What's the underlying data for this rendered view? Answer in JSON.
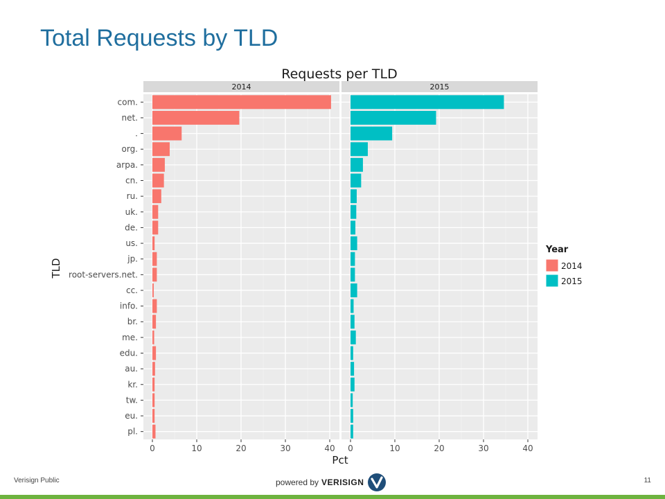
{
  "slide": {
    "title": "Total Requests by TLD",
    "footer_left": "Verisign Public",
    "footer_powered": "powered by",
    "footer_brand": "VERISIGN",
    "page_number": "11"
  },
  "colors": {
    "title": "#1f6e9e",
    "series_2014": "#f8766d",
    "series_2015": "#00bfc4",
    "panel_bg": "#ebebeb",
    "strip_bg": "#d9d9d9",
    "footer_bar": "#6db33f",
    "logo_circle": "#1f4e79"
  },
  "chart_data": {
    "type": "bar",
    "orientation": "horizontal",
    "facet": "Year",
    "title": "Requests per TLD",
    "xlabel": "Pct",
    "ylabel": "TLD",
    "xlim": [
      0,
      40
    ],
    "xticks": [
      0,
      10,
      20,
      30,
      40
    ],
    "grid": true,
    "legend": {
      "title": "Year",
      "position": "right"
    },
    "categories": [
      "com.",
      "net.",
      ".",
      "org.",
      "arpa.",
      "cn.",
      "ru.",
      "uk.",
      "de.",
      "us.",
      "jp.",
      "root-servers.net.",
      "cc.",
      "info.",
      "br.",
      "me.",
      "edu.",
      "au.",
      "kr.",
      "tw.",
      "eu.",
      "pl."
    ],
    "series": [
      {
        "name": "2014",
        "values": [
          40.3,
          19.6,
          6.6,
          3.9,
          2.8,
          2.6,
          2.0,
          1.3,
          1.3,
          0.5,
          1.0,
          1.0,
          0.3,
          1.0,
          0.8,
          0.4,
          0.8,
          0.6,
          0.5,
          0.5,
          0.5,
          0.7
        ]
      },
      {
        "name": "2015",
        "values": [
          34.6,
          19.3,
          9.4,
          3.9,
          2.8,
          2.4,
          1.4,
          1.3,
          1.1,
          1.5,
          1.0,
          1.0,
          1.5,
          0.7,
          0.9,
          1.2,
          0.6,
          0.8,
          0.9,
          0.5,
          0.6,
          0.6
        ]
      }
    ]
  }
}
